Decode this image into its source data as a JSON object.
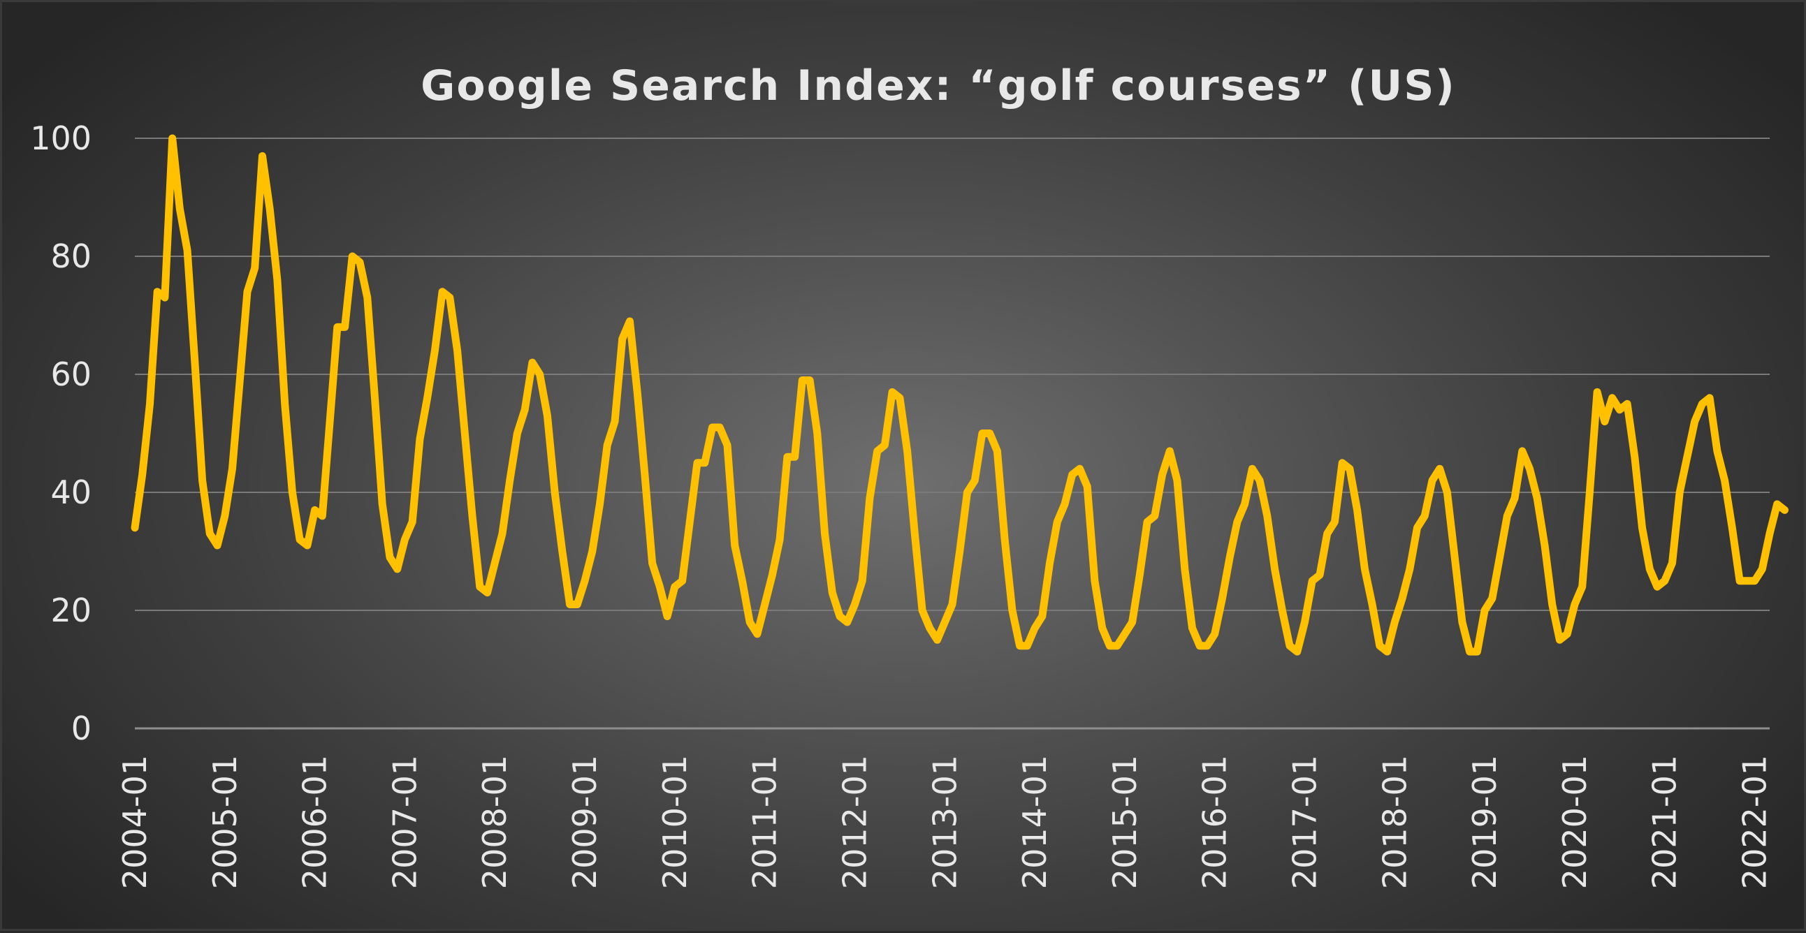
{
  "colors": {
    "line": "#FFC000",
    "text": "#E8E8E8",
    "grid": "#7A7A7A",
    "axis": "#8E8E8E"
  },
  "chart_data": {
    "type": "line",
    "title": "Google Search Index: “golf courses” (US)",
    "xlabel": "",
    "ylabel": "",
    "ylim": [
      0,
      100
    ],
    "y_ticks": [
      0,
      20,
      40,
      60,
      80,
      100
    ],
    "grid": true,
    "legend": "none",
    "x_tick_labels": [
      "2004-01",
      "2005-01",
      "2006-01",
      "2007-01",
      "2008-01",
      "2009-01",
      "2010-01",
      "2011-01",
      "2012-01",
      "2013-01",
      "2014-01",
      "2015-01",
      "2016-01",
      "2017-01",
      "2018-01",
      "2019-01",
      "2020-01",
      "2021-01",
      "2022-01"
    ],
    "x_start": "2004-01",
    "x_end": "2022-03",
    "series": [
      {
        "values": [
          34,
          43,
          55,
          74,
          73,
          100,
          88,
          81,
          62,
          42,
          33,
          31,
          36,
          44,
          59,
          74,
          78,
          97,
          88,
          76,
          55,
          40,
          32,
          31,
          37,
          36,
          52,
          68,
          68,
          80,
          79,
          73,
          56,
          38,
          29,
          27,
          32,
          35,
          49,
          56,
          64,
          74,
          73,
          64,
          50,
          36,
          24,
          23,
          28,
          33,
          42,
          50,
          54,
          62,
          60,
          53,
          40,
          30,
          21,
          21,
          25,
          30,
          38,
          48,
          52,
          66,
          69,
          57,
          43,
          28,
          24,
          19,
          24,
          25,
          35,
          45,
          45,
          51,
          51,
          48,
          31,
          25,
          18,
          16,
          21,
          26,
          32,
          46,
          46,
          59,
          59,
          50,
          33,
          23,
          19,
          18,
          21,
          25,
          39,
          47,
          48,
          57,
          56,
          47,
          33,
          20,
          17,
          15,
          18,
          21,
          30,
          40,
          42,
          50,
          50,
          47,
          32,
          20,
          14,
          14,
          17,
          19,
          28,
          35,
          38,
          43,
          44,
          41,
          25,
          17,
          14,
          14,
          16,
          18,
          26,
          35,
          36,
          43,
          47,
          42,
          27,
          17,
          14,
          14,
          16,
          22,
          29,
          35,
          38,
          44,
          42,
          36,
          27,
          20,
          14,
          13,
          18,
          25,
          26,
          33,
          35,
          45,
          44,
          37,
          27,
          21,
          14,
          13,
          18,
          22,
          27,
          34,
          36,
          42,
          44,
          40,
          29,
          18,
          13,
          13,
          20,
          22,
          29,
          36,
          39,
          47,
          44,
          39,
          31,
          21,
          15,
          16,
          21,
          24,
          40,
          57,
          52,
          56,
          54,
          55,
          46,
          34,
          27,
          24,
          25,
          28,
          40,
          46,
          52,
          55,
          56,
          47,
          42,
          34,
          25,
          25,
          25,
          27,
          33,
          38,
          37
        ]
      }
    ]
  }
}
